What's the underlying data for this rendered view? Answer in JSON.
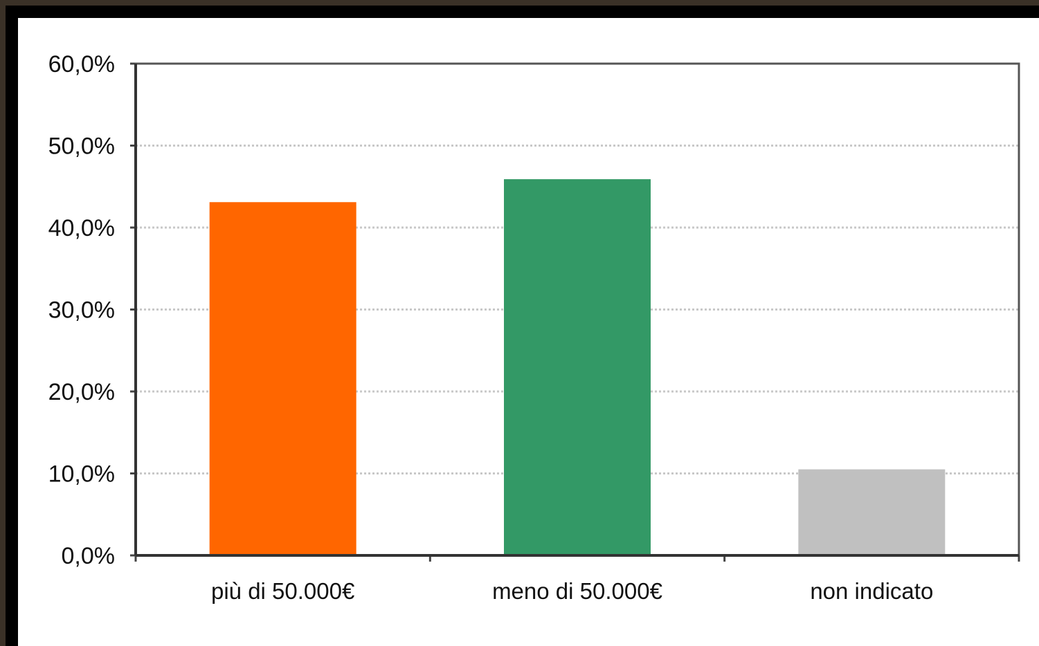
{
  "chart_data": {
    "type": "bar",
    "categories": [
      "più di 50.000€",
      "meno di 50.000€",
      "non indicato"
    ],
    "values": [
      43.1,
      45.9,
      10.5
    ],
    "ylim": [
      0,
      60
    ],
    "yticks": [
      "0,0%",
      "10,0%",
      "20,0%",
      "30,0%",
      "40,0%",
      "50,0%",
      "60,0%"
    ],
    "grid": true,
    "colors": [
      "#ff6600",
      "#339966",
      "#c0c0c0"
    ],
    "title": "",
    "xlabel": "",
    "ylabel": ""
  }
}
